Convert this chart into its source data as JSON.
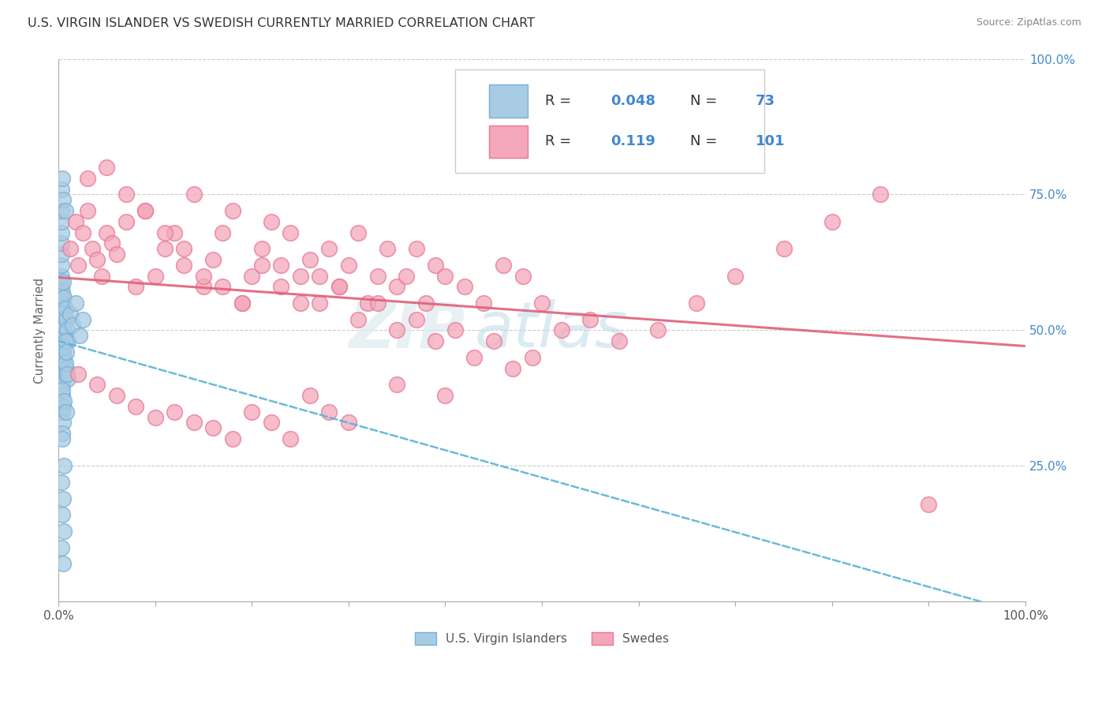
{
  "title": "U.S. VIRGIN ISLANDER VS SWEDISH CURRENTLY MARRIED CORRELATION CHART",
  "source": "Source: ZipAtlas.com",
  "ylabel": "Currently Married",
  "watermark": "ZIPatlas",
  "legend": {
    "blue_R": 0.048,
    "blue_N": 73,
    "pink_R": 0.119,
    "pink_N": 101
  },
  "blue_color": "#a8cce4",
  "blue_edge_color": "#7bafd4",
  "pink_color": "#f4a7b9",
  "pink_edge_color": "#e87898",
  "blue_line_color": "#5ab4d4",
  "pink_line_color": "#e0607a",
  "ytick_labels": [
    "25.0%",
    "50.0%",
    "75.0%",
    "100.0%"
  ],
  "ytick_values": [
    0.25,
    0.5,
    0.75,
    1.0
  ],
  "legend_label_blue": "U.S. Virgin Islanders",
  "legend_label_pink": "Swedes",
  "blue_scatter_x": [
    0.003,
    0.004,
    0.003,
    0.005,
    0.004,
    0.003,
    0.004,
    0.005,
    0.003,
    0.004,
    0.005,
    0.004,
    0.003,
    0.004,
    0.005,
    0.003,
    0.004,
    0.003,
    0.005,
    0.004,
    0.003,
    0.004,
    0.003,
    0.005,
    0.003,
    0.004,
    0.005,
    0.003,
    0.004,
    0.003,
    0.004,
    0.005,
    0.003,
    0.004,
    0.003,
    0.005,
    0.004,
    0.003,
    0.004,
    0.005,
    0.006,
    0.007,
    0.008,
    0.009,
    0.01,
    0.012,
    0.015,
    0.018,
    0.022,
    0.025,
    0.006,
    0.008,
    0.01,
    0.005,
    0.007,
    0.009,
    0.004,
    0.006,
    0.008,
    0.003,
    0.005,
    0.007,
    0.004,
    0.006,
    0.003,
    0.005,
    0.004,
    0.006,
    0.003,
    0.005,
    0.007,
    0.008,
    0.004
  ],
  "blue_scatter_y": [
    0.53,
    0.51,
    0.55,
    0.5,
    0.54,
    0.52,
    0.56,
    0.49,
    0.53,
    0.51,
    0.55,
    0.48,
    0.52,
    0.5,
    0.54,
    0.47,
    0.51,
    0.55,
    0.46,
    0.53,
    0.58,
    0.44,
    0.6,
    0.42,
    0.62,
    0.43,
    0.45,
    0.64,
    0.4,
    0.66,
    0.38,
    0.36,
    0.68,
    0.35,
    0.7,
    0.33,
    0.31,
    0.72,
    0.57,
    0.59,
    0.56,
    0.54,
    0.52,
    0.5,
    0.48,
    0.53,
    0.51,
    0.55,
    0.49,
    0.52,
    0.45,
    0.43,
    0.41,
    0.47,
    0.44,
    0.42,
    0.39,
    0.37,
    0.35,
    0.76,
    0.74,
    0.72,
    0.78,
    0.25,
    0.22,
    0.19,
    0.16,
    0.13,
    0.1,
    0.07,
    0.48,
    0.46,
    0.3
  ],
  "pink_scatter_x": [
    0.012,
    0.02,
    0.018,
    0.025,
    0.03,
    0.035,
    0.04,
    0.045,
    0.05,
    0.055,
    0.06,
    0.07,
    0.08,
    0.09,
    0.1,
    0.11,
    0.12,
    0.13,
    0.14,
    0.15,
    0.16,
    0.17,
    0.18,
    0.19,
    0.2,
    0.21,
    0.22,
    0.23,
    0.24,
    0.25,
    0.26,
    0.27,
    0.28,
    0.29,
    0.3,
    0.31,
    0.32,
    0.33,
    0.34,
    0.35,
    0.36,
    0.37,
    0.38,
    0.39,
    0.4,
    0.42,
    0.44,
    0.46,
    0.48,
    0.5,
    0.03,
    0.05,
    0.07,
    0.09,
    0.11,
    0.13,
    0.15,
    0.17,
    0.19,
    0.21,
    0.23,
    0.25,
    0.27,
    0.29,
    0.31,
    0.33,
    0.35,
    0.37,
    0.39,
    0.41,
    0.43,
    0.45,
    0.47,
    0.49,
    0.52,
    0.55,
    0.58,
    0.62,
    0.66,
    0.7,
    0.75,
    0.8,
    0.85,
    0.9,
    0.02,
    0.04,
    0.06,
    0.08,
    0.1,
    0.12,
    0.14,
    0.16,
    0.18,
    0.2,
    0.22,
    0.24,
    0.26,
    0.28,
    0.3,
    0.35,
    0.4
  ],
  "pink_scatter_y": [
    0.65,
    0.62,
    0.7,
    0.68,
    0.72,
    0.65,
    0.63,
    0.6,
    0.68,
    0.66,
    0.64,
    0.7,
    0.58,
    0.72,
    0.6,
    0.65,
    0.68,
    0.62,
    0.75,
    0.58,
    0.63,
    0.68,
    0.72,
    0.55,
    0.6,
    0.65,
    0.7,
    0.62,
    0.68,
    0.55,
    0.63,
    0.6,
    0.65,
    0.58,
    0.62,
    0.68,
    0.55,
    0.6,
    0.65,
    0.58,
    0.6,
    0.65,
    0.55,
    0.62,
    0.6,
    0.58,
    0.55,
    0.62,
    0.6,
    0.55,
    0.78,
    0.8,
    0.75,
    0.72,
    0.68,
    0.65,
    0.6,
    0.58,
    0.55,
    0.62,
    0.58,
    0.6,
    0.55,
    0.58,
    0.52,
    0.55,
    0.5,
    0.52,
    0.48,
    0.5,
    0.45,
    0.48,
    0.43,
    0.45,
    0.5,
    0.52,
    0.48,
    0.5,
    0.55,
    0.6,
    0.65,
    0.7,
    0.75,
    0.18,
    0.42,
    0.4,
    0.38,
    0.36,
    0.34,
    0.35,
    0.33,
    0.32,
    0.3,
    0.35,
    0.33,
    0.3,
    0.38,
    0.35,
    0.33,
    0.4,
    0.38
  ]
}
